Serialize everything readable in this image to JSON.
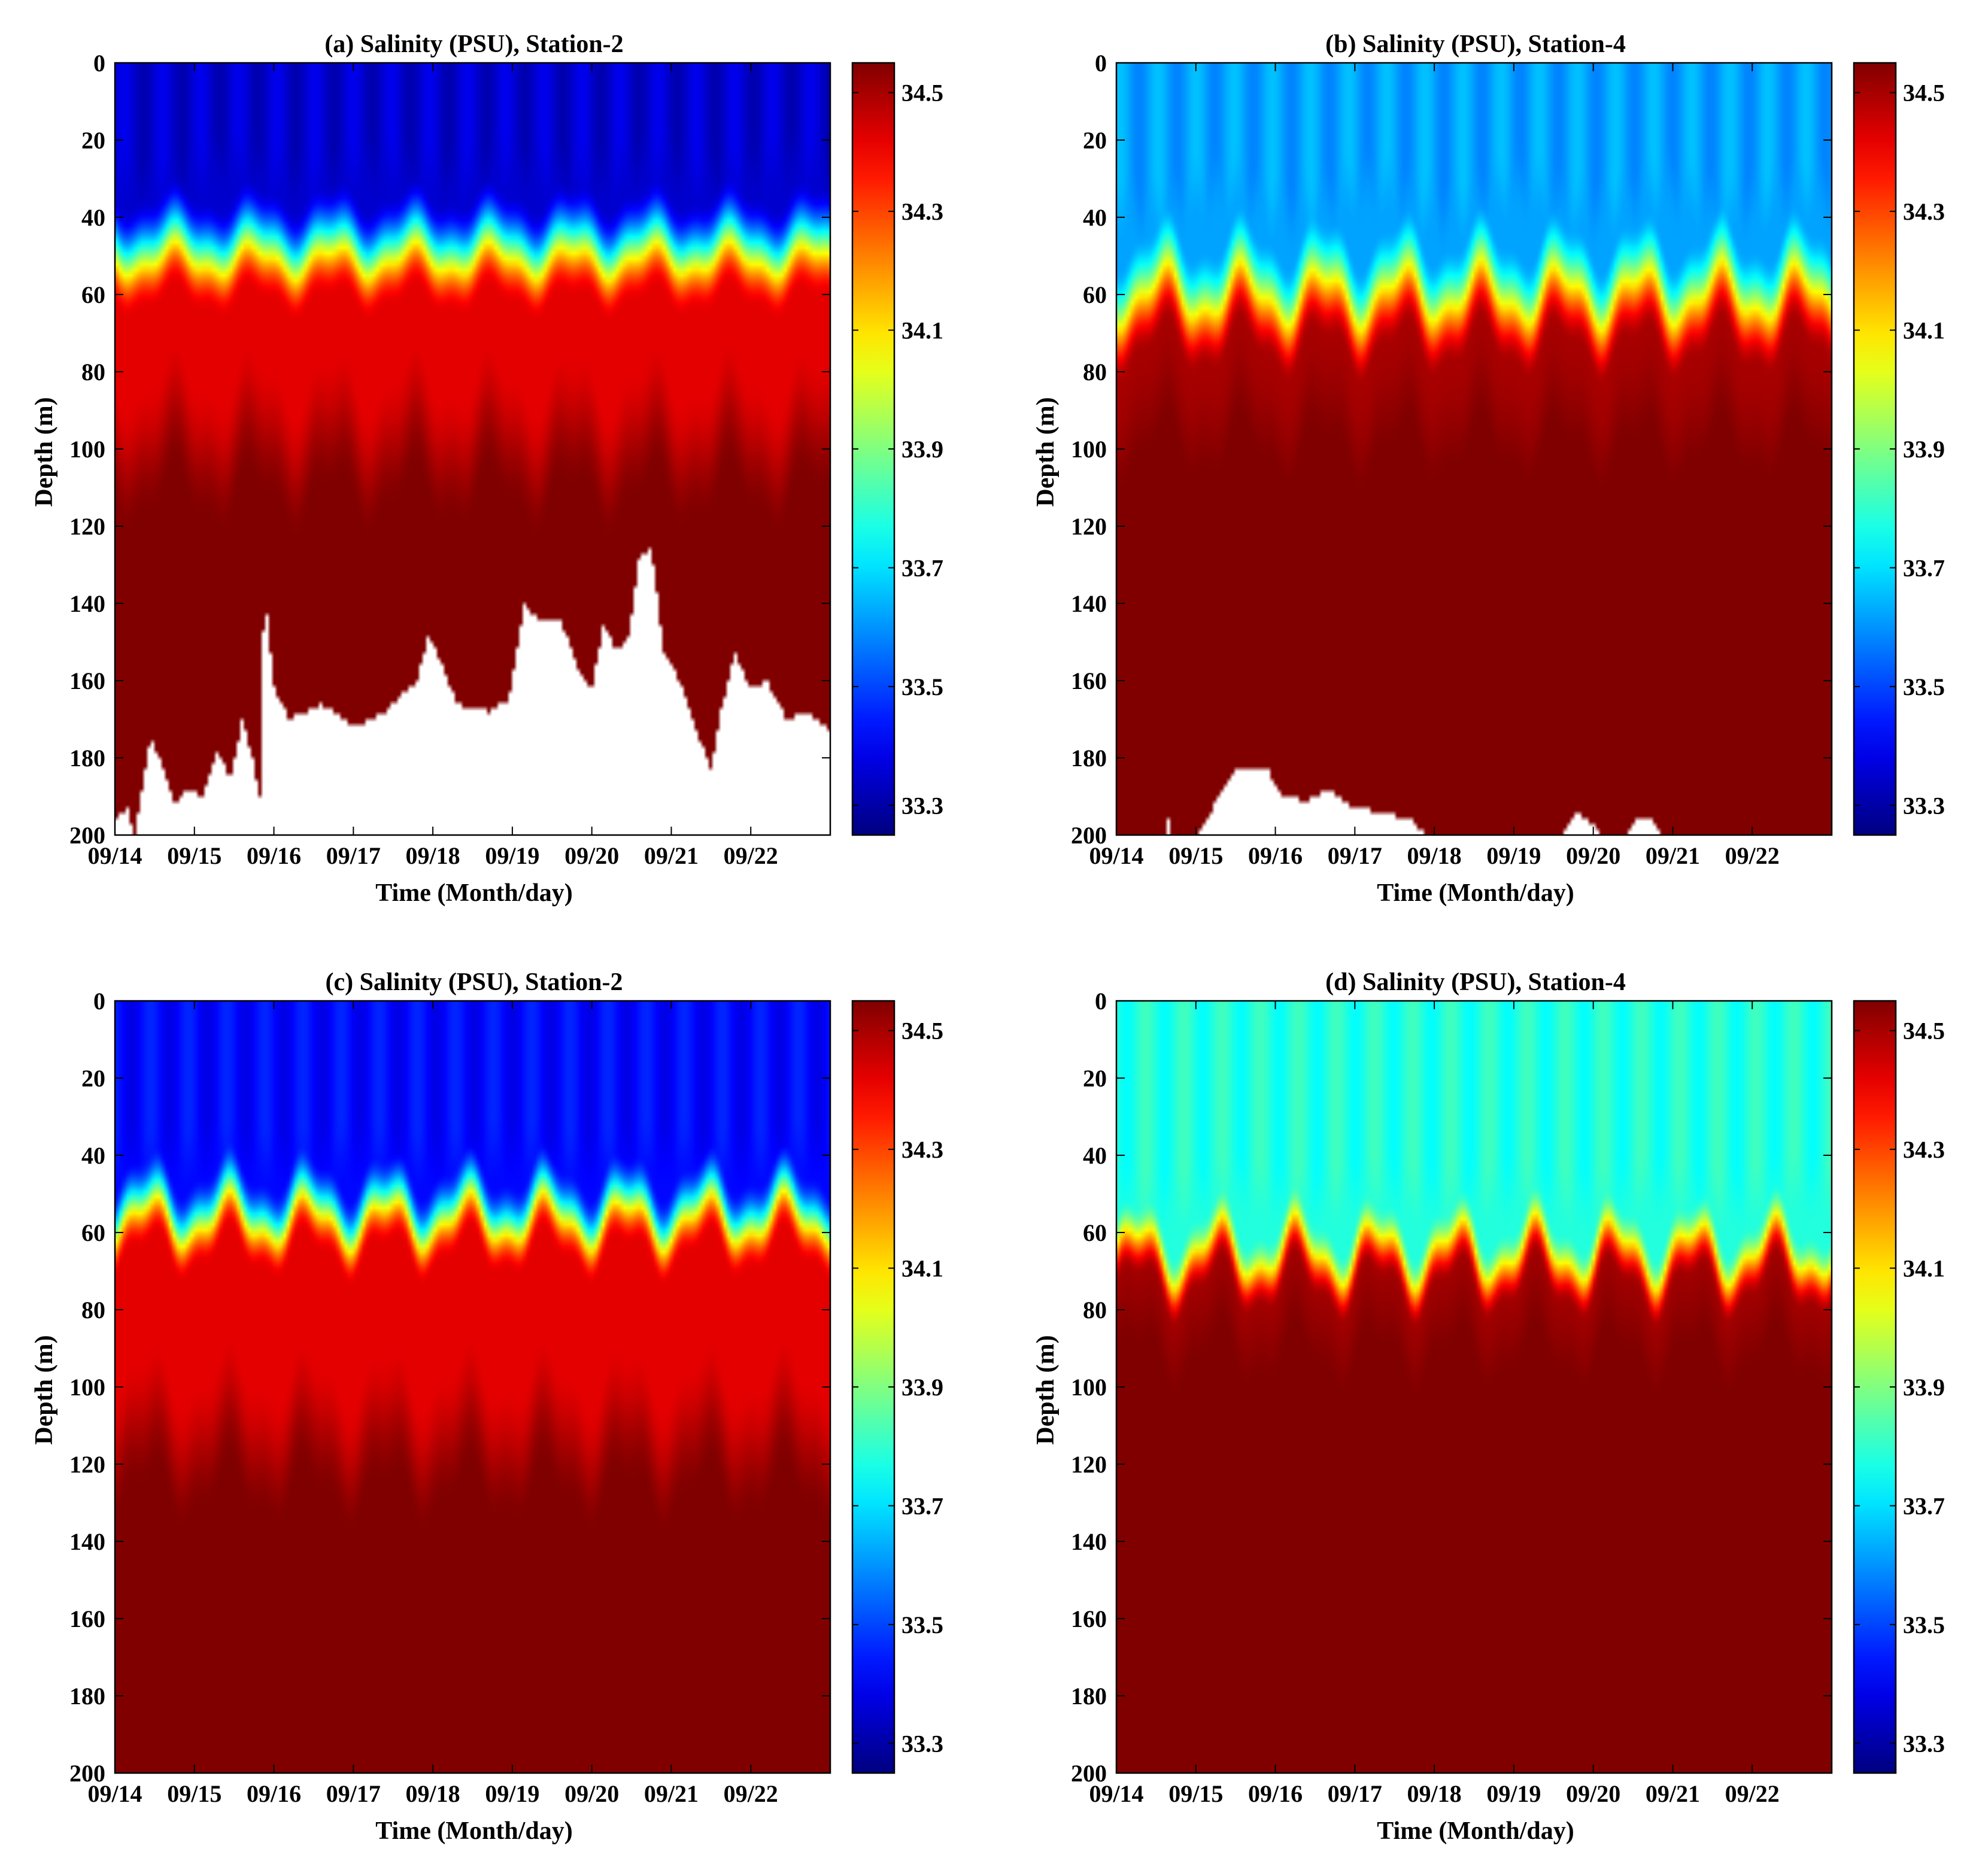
{
  "chart_data": [
    {
      "type": "heatmap",
      "panel": "a",
      "title": "(a) Salinity (PSU), Station-2",
      "xlabel": "Time (Month/day)",
      "ylabel": "Depth (m)",
      "x_ticks": [
        "09/14",
        "09/15",
        "09/16",
        "09/17",
        "09/18",
        "09/19",
        "09/20",
        "09/21",
        "09/22"
      ],
      "y_ticks": [
        "0",
        "20",
        "40",
        "60",
        "80",
        "100",
        "120",
        "140",
        "160",
        "180",
        "200"
      ],
      "xlim": [
        0,
        9
      ],
      "ylim": [
        0,
        200
      ],
      "colorbar_ticks": [
        "33.3",
        "33.5",
        "33.7",
        "33.9",
        "34.1",
        "34.3",
        "34.5"
      ],
      "clim": [
        33.25,
        34.55
      ],
      "layers": {
        "surface_salinity": 33.35,
        "mixed_bottom": 28,
        "mixed_amp": 5,
        "halocline_center": 48,
        "halocline_amp": 5,
        "halocline_width": 28,
        "mid_salinity": 34.42,
        "deep_top": 95,
        "deep_salinity": 34.55
      },
      "bottom_depth": [
        [
          0.0,
          196
        ],
        [
          0.15,
          193
        ],
        [
          0.25,
          200
        ],
        [
          0.45,
          175
        ],
        [
          0.6,
          182
        ],
        [
          0.75,
          192
        ],
        [
          0.9,
          188
        ],
        [
          1.1,
          190
        ],
        [
          1.3,
          178
        ],
        [
          1.45,
          186
        ],
        [
          1.6,
          170
        ],
        [
          1.75,
          182
        ],
        [
          1.82,
          192
        ],
        [
          1.88,
          135
        ],
        [
          2.0,
          162
        ],
        [
          2.2,
          170
        ],
        [
          2.6,
          166
        ],
        [
          3.0,
          172
        ],
        [
          3.4,
          168
        ],
        [
          3.8,
          160
        ],
        [
          3.95,
          148
        ],
        [
          4.1,
          155
        ],
        [
          4.3,
          166
        ],
        [
          4.7,
          168
        ],
        [
          4.95,
          165
        ],
        [
          5.15,
          140
        ],
        [
          5.35,
          145
        ],
        [
          5.6,
          144
        ],
        [
          5.85,
          158
        ],
        [
          6.0,
          162
        ],
        [
          6.15,
          145
        ],
        [
          6.3,
          152
        ],
        [
          6.45,
          150
        ],
        [
          6.6,
          128
        ],
        [
          6.75,
          126
        ],
        [
          6.9,
          152
        ],
        [
          7.1,
          160
        ],
        [
          7.3,
          172
        ],
        [
          7.5,
          183
        ],
        [
          7.6,
          170
        ],
        [
          7.8,
          153
        ],
        [
          8.0,
          162
        ],
        [
          8.2,
          160
        ],
        [
          8.45,
          170
        ],
        [
          8.7,
          168
        ],
        [
          9.0,
          173
        ]
      ]
    },
    {
      "type": "heatmap",
      "panel": "b",
      "title": "(b) Salinity (PSU), Station-4",
      "xlabel": "Time (Month/day)",
      "ylabel": "Depth (m)",
      "x_ticks": [
        "09/14",
        "09/15",
        "09/16",
        "09/17",
        "09/18",
        "09/19",
        "09/20",
        "09/21",
        "09/22"
      ],
      "y_ticks": [
        "0",
        "20",
        "40",
        "60",
        "80",
        "100",
        "120",
        "140",
        "160",
        "180",
        "200"
      ],
      "xlim": [
        0,
        9
      ],
      "ylim": [
        0,
        200
      ],
      "colorbar_ticks": [
        "33.3",
        "33.5",
        "33.7",
        "33.9",
        "34.1",
        "34.3",
        "34.5"
      ],
      "clim": [
        33.25,
        34.55
      ],
      "layers": {
        "surface_salinity": 33.62,
        "mixed_bottom": 35,
        "mixed_amp": 6,
        "halocline_center": 60,
        "halocline_amp": 9,
        "halocline_width": 30,
        "mid_salinity": 34.5,
        "deep_top": 90,
        "deep_salinity": 34.56
      },
      "bottom_depth": [
        [
          0.0,
          200
        ],
        [
          0.6,
          200
        ],
        [
          0.65,
          196
        ],
        [
          0.7,
          200
        ],
        [
          1.0,
          200
        ],
        [
          1.15,
          195
        ],
        [
          1.3,
          190
        ],
        [
          1.5,
          183
        ],
        [
          1.9,
          183
        ],
        [
          2.1,
          190
        ],
        [
          2.4,
          191
        ],
        [
          2.7,
          188
        ],
        [
          2.9,
          192
        ],
        [
          3.3,
          194
        ],
        [
          3.7,
          196
        ],
        [
          3.9,
          200
        ],
        [
          5.6,
          200
        ],
        [
          5.8,
          194
        ],
        [
          6.0,
          197
        ],
        [
          6.1,
          200
        ],
        [
          6.4,
          200
        ],
        [
          6.55,
          195
        ],
        [
          6.75,
          196
        ],
        [
          6.85,
          200
        ],
        [
          9.0,
          200
        ]
      ]
    },
    {
      "type": "heatmap",
      "panel": "c",
      "title": "(c) Salinity (PSU), Station-2",
      "xlabel": "Time (Month/day)",
      "ylabel": "Depth (m)",
      "x_ticks": [
        "09/14",
        "09/15",
        "09/16",
        "09/17",
        "09/18",
        "09/19",
        "09/20",
        "09/21",
        "09/22"
      ],
      "y_ticks": [
        "0",
        "20",
        "40",
        "60",
        "80",
        "100",
        "120",
        "140",
        "160",
        "180",
        "200"
      ],
      "xlim": [
        0,
        9
      ],
      "ylim": [
        0,
        200
      ],
      "colorbar_ticks": [
        "33.3",
        "33.5",
        "33.7",
        "33.9",
        "34.1",
        "34.3",
        "34.5"
      ],
      "clim": [
        33.25,
        34.55
      ],
      "layers": {
        "surface_salinity": 33.42,
        "mixed_bottom": 40,
        "mixed_amp": 2,
        "halocline_center": 55,
        "halocline_amp": 8,
        "halocline_width": 22,
        "mid_salinity": 34.42,
        "deep_top": 110,
        "deep_salinity": 34.55
      },
      "bottom_depth": []
    },
    {
      "type": "heatmap",
      "panel": "d",
      "title": "(d) Salinity (PSU), Station-4",
      "xlabel": "Time (Month/day)",
      "ylabel": "Depth (m)",
      "x_ticks": [
        "09/14",
        "09/15",
        "09/16",
        "09/17",
        "09/18",
        "09/19",
        "09/20",
        "09/21",
        "09/22"
      ],
      "y_ticks": [
        "0",
        "20",
        "40",
        "60",
        "80",
        "100",
        "120",
        "140",
        "160",
        "180",
        "200"
      ],
      "xlim": [
        0,
        9
      ],
      "ylim": [
        0,
        200
      ],
      "colorbar_ticks": [
        "33.3",
        "33.5",
        "33.7",
        "33.9",
        "34.1",
        "34.3",
        "34.5"
      ],
      "clim": [
        33.25,
        34.55
      ],
      "layers": {
        "surface_salinity": 33.78,
        "mixed_bottom": 50,
        "mixed_amp": 4,
        "halocline_center": 66,
        "halocline_amp": 10,
        "halocline_width": 18,
        "mid_salinity": 34.5,
        "deep_top": 82,
        "deep_salinity": 34.56
      },
      "bottom_depth": []
    }
  ]
}
